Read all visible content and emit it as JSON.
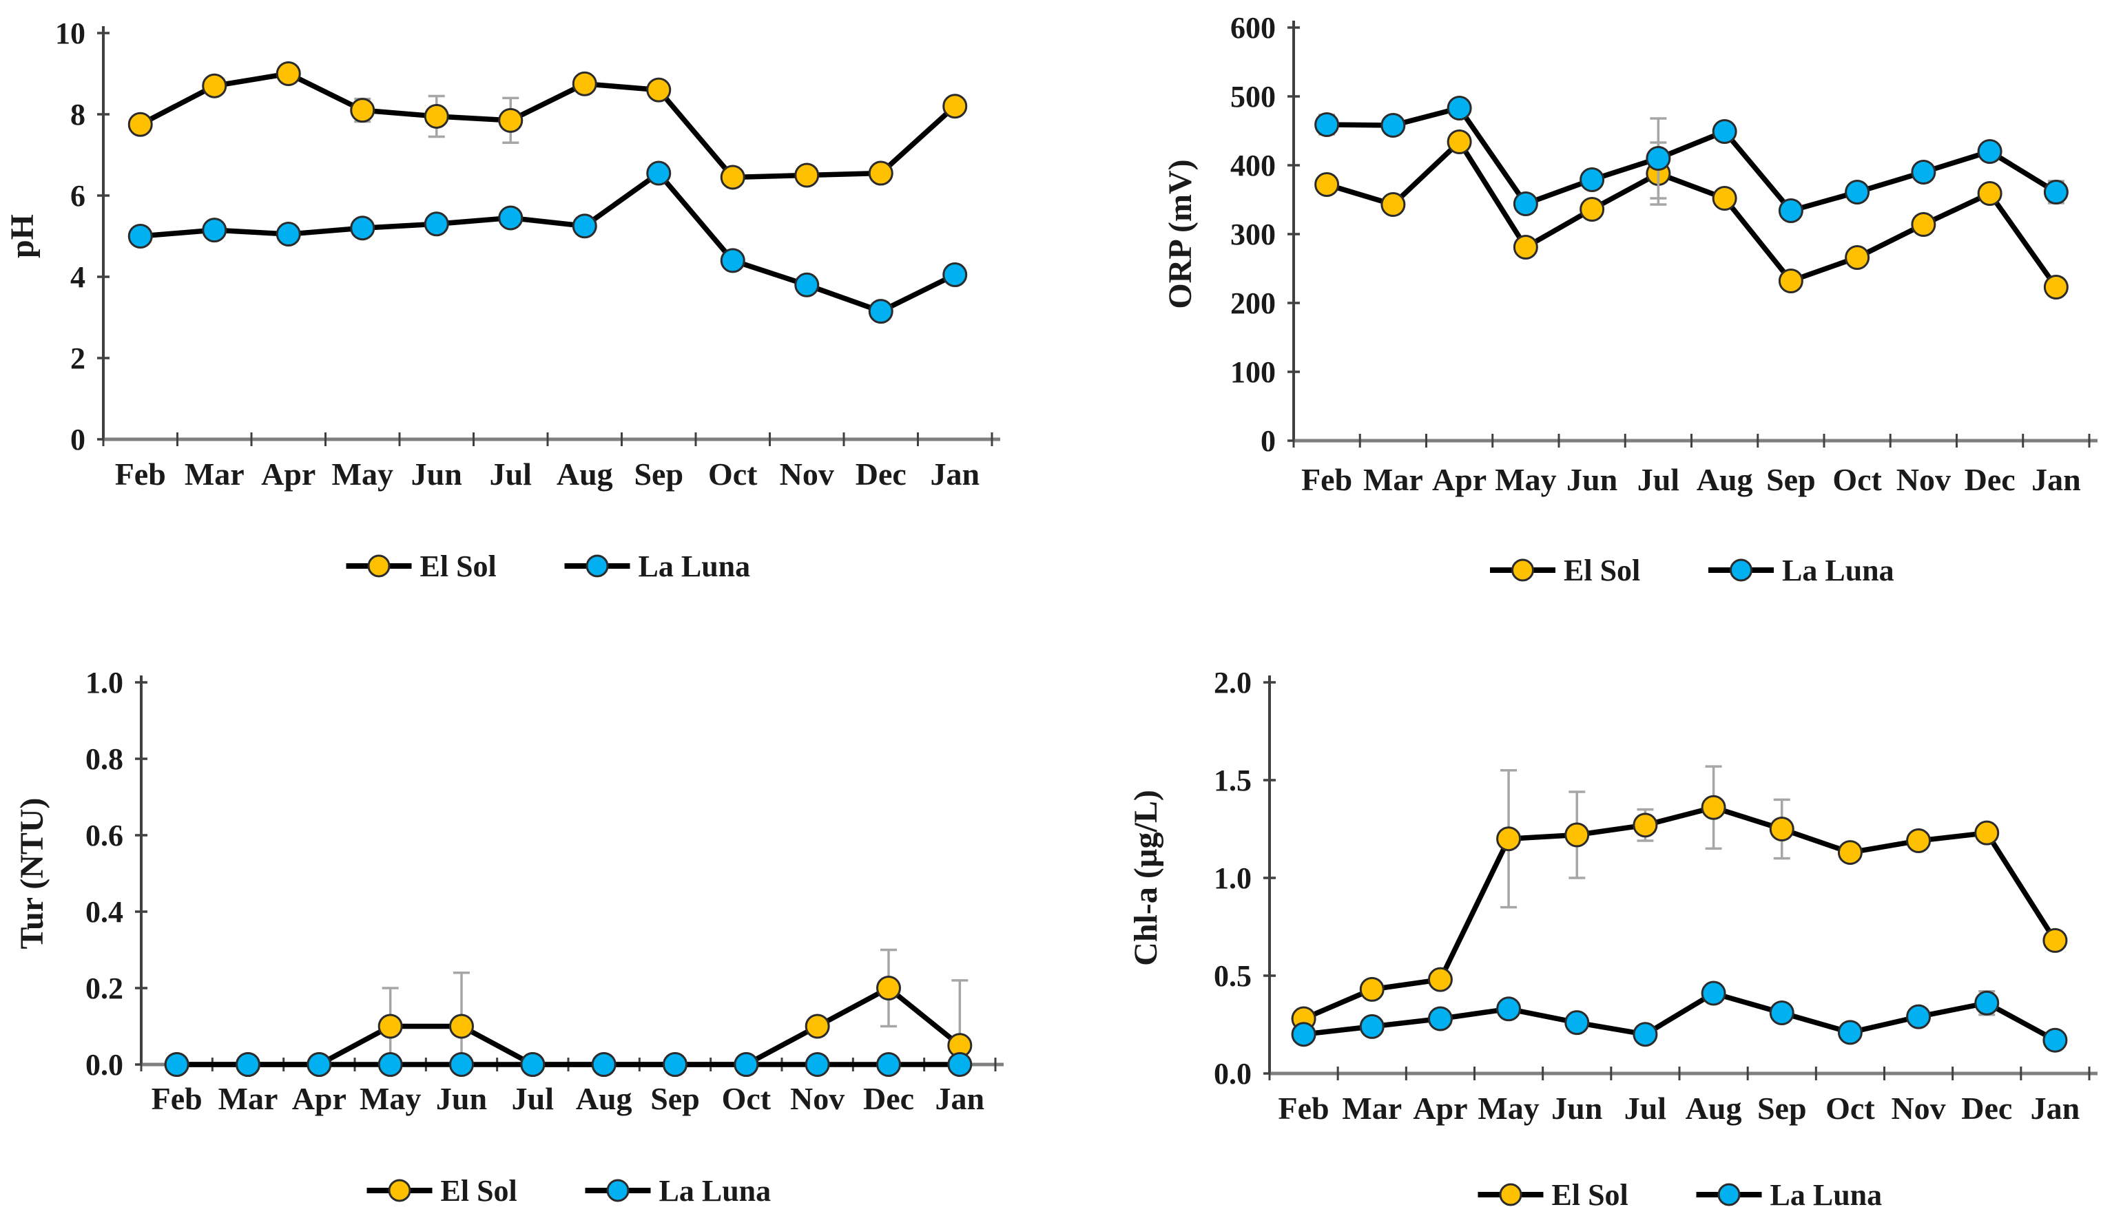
{
  "figure": {
    "legend": {
      "series_1": "El Sol",
      "series_2": "La Luna"
    },
    "colors": {
      "el_sol": "#FFC000",
      "la_luna": "#00B0F0",
      "line": "#000000",
      "error_bar": "#a6a6a6",
      "y_axis": "#404040",
      "x_axis": "#7f7f7f",
      "text": "#1a1a1a",
      "background": "#ffffff"
    }
  },
  "chart_data": [
    {
      "id": "ph",
      "type": "line",
      "title": "",
      "xlabel": "",
      "ylabel": "pH",
      "categories": [
        "Feb",
        "Mar",
        "Apr",
        "May",
        "Jun",
        "Jul",
        "Aug",
        "Sep",
        "Oct",
        "Nov",
        "Dec",
        "Jan"
      ],
      "ylim": [
        0,
        10
      ],
      "yticks": [
        0,
        2,
        4,
        6,
        8,
        10
      ],
      "ytick_labels": [
        "0",
        "2",
        "4",
        "6",
        "8",
        "10"
      ],
      "grid": false,
      "legend_position": "bottom",
      "series": [
        {
          "name": "El Sol",
          "color": "#FFC000",
          "values": [
            7.75,
            8.7,
            9.0,
            8.1,
            7.95,
            7.85,
            8.75,
            8.6,
            6.45,
            6.5,
            6.55,
            8.2
          ],
          "errors": [
            0,
            0,
            0,
            0.28,
            0.5,
            0.55,
            0,
            0,
            0,
            0,
            0,
            0
          ]
        },
        {
          "name": "La Luna",
          "color": "#00B0F0",
          "values": [
            5.0,
            5.15,
            5.05,
            5.2,
            5.3,
            5.45,
            5.25,
            6.55,
            4.4,
            3.8,
            3.15,
            4.05
          ],
          "errors": [
            0,
            0,
            0,
            0,
            0,
            0,
            0,
            0,
            0,
            0,
            0,
            0
          ]
        }
      ]
    },
    {
      "id": "orp",
      "type": "line",
      "title": "",
      "xlabel": "",
      "ylabel": "ORP (mV)",
      "categories": [
        "Feb",
        "Mar",
        "Apr",
        "May",
        "Jun",
        "Jul",
        "Aug",
        "Sep",
        "Oct",
        "Nov",
        "Dec",
        "Jan"
      ],
      "ylim": [
        0,
        600
      ],
      "yticks": [
        0,
        100,
        200,
        300,
        400,
        500,
        600
      ],
      "ytick_labels": [
        "0",
        "100",
        "200",
        "300",
        "400",
        "500",
        "600"
      ],
      "grid": false,
      "legend_position": "bottom",
      "series": [
        {
          "name": "El Sol",
          "color": "#FFC000",
          "values": [
            372,
            343,
            434,
            281,
            336,
            388,
            352,
            232,
            266,
            314,
            359,
            223
          ],
          "errors": [
            12,
            0,
            0,
            0,
            0,
            45,
            0,
            0,
            0,
            0,
            0,
            0
          ]
        },
        {
          "name": "La Luna",
          "color": "#00B0F0",
          "values": [
            459,
            458,
            483,
            344,
            379,
            410,
            449,
            334,
            361,
            390,
            420,
            361
          ],
          "errors": [
            14,
            0,
            0,
            0,
            0,
            58,
            0,
            0,
            0,
            0,
            0,
            16
          ]
        }
      ]
    },
    {
      "id": "tur",
      "type": "line",
      "title": "",
      "xlabel": "",
      "ylabel": "Tur (NTU)",
      "categories": [
        "Feb",
        "Mar",
        "Apr",
        "May",
        "Jun",
        "Jul",
        "Aug",
        "Sep",
        "Oct",
        "Nov",
        "Dec",
        "Jan"
      ],
      "ylim": [
        0,
        1.0
      ],
      "yticks": [
        0,
        0.2,
        0.4,
        0.6,
        0.8,
        1.0
      ],
      "ytick_labels": [
        "0.0",
        "0.2",
        "0.4",
        "0.6",
        "0.8",
        "1.0"
      ],
      "grid": false,
      "legend_position": "bottom",
      "series": [
        {
          "name": "El Sol",
          "color": "#FFC000",
          "values": [
            0,
            0,
            0,
            0.1,
            0.1,
            0,
            0,
            0,
            0,
            0.1,
            0.2,
            0.05
          ],
          "errors": [
            0,
            0,
            0,
            0.1,
            0.14,
            0,
            0,
            0,
            0,
            0,
            0.1,
            0.17
          ]
        },
        {
          "name": "La Luna",
          "color": "#00B0F0",
          "values": [
            0,
            0,
            0,
            0,
            0,
            0,
            0,
            0,
            0,
            0,
            0,
            0
          ],
          "errors": [
            0,
            0,
            0,
            0,
            0,
            0,
            0,
            0,
            0,
            0,
            0,
            0
          ]
        }
      ]
    },
    {
      "id": "chl_a",
      "type": "line",
      "title": "",
      "xlabel": "",
      "ylabel": "Chl-a (µg/L)",
      "categories": [
        "Feb",
        "Mar",
        "Apr",
        "May",
        "Jun",
        "Jul",
        "Aug",
        "Sep",
        "Oct",
        "Nov",
        "Dec",
        "Jan"
      ],
      "ylim": [
        0,
        2.0
      ],
      "yticks": [
        0,
        0.5,
        1.0,
        1.5,
        2.0
      ],
      "ytick_labels": [
        "0.0",
        "0.5",
        "1.0",
        "1.5",
        "2.0"
      ],
      "grid": false,
      "legend_position": "bottom",
      "series": [
        {
          "name": "El Sol",
          "color": "#FFC000",
          "values": [
            0.28,
            0.43,
            0.48,
            1.2,
            1.22,
            1.27,
            1.36,
            1.25,
            1.13,
            1.19,
            1.23,
            0.68
          ],
          "errors": [
            0,
            0,
            0,
            0.35,
            0.22,
            0.08,
            0.21,
            0.15,
            0,
            0,
            0,
            0
          ]
        },
        {
          "name": "La Luna",
          "color": "#00B0F0",
          "values": [
            0.2,
            0.24,
            0.28,
            0.33,
            0.26,
            0.2,
            0.41,
            0.31,
            0.21,
            0.29,
            0.36,
            0.17
          ],
          "errors": [
            0,
            0,
            0,
            0,
            0,
            0,
            0,
            0,
            0,
            0,
            0.06,
            0
          ]
        }
      ]
    }
  ]
}
